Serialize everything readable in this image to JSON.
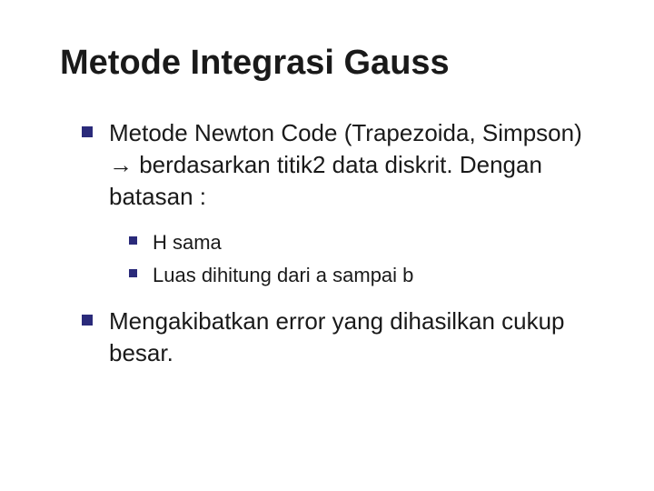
{
  "slide": {
    "title": "Metode Integrasi Gauss",
    "title_fontsize": 38,
    "title_color": "#1a1a1a",
    "background_color": "#ffffff",
    "bullet_marker_color": "#2a2a7a",
    "body_color": "#1a1a1a",
    "body_fontsize_l1": 26,
    "body_fontsize_l2": 22,
    "bullets": [
      {
        "text_before_arrow": "Metode Newton Code (Trapezoida, Simpson) ",
        "arrow": "→",
        "text_after_arrow": " berdasarkan titik2 data diskrit. Dengan batasan :",
        "sub": [
          {
            "text": "H sama"
          },
          {
            "text": "Luas dihitung dari a sampai b"
          }
        ]
      },
      {
        "text": "Mengakibatkan error yang dihasilkan cukup besar."
      }
    ]
  }
}
